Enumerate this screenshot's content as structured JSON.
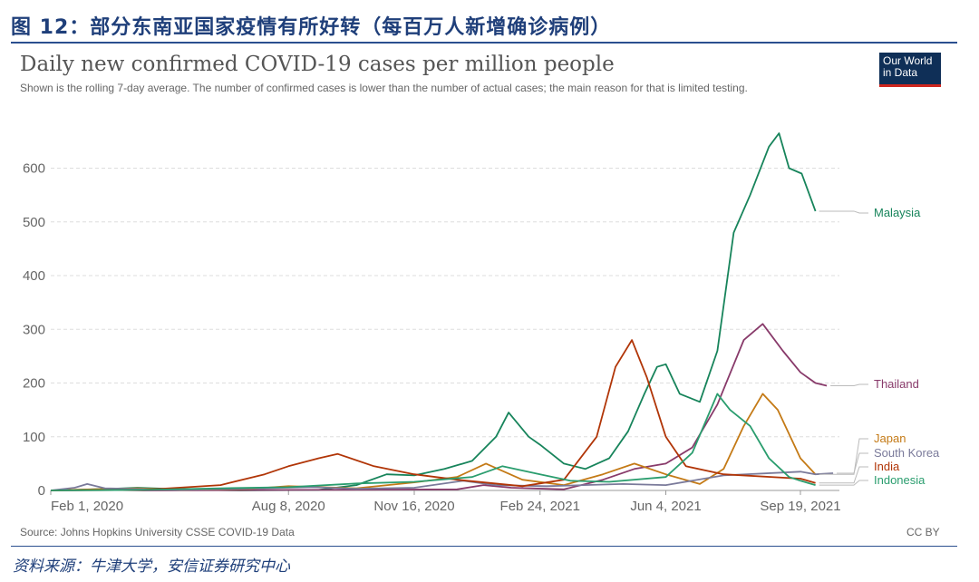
{
  "figure": {
    "title": "图 12：部分东南亚国家疫情有所好转（每百万人新增确诊病例）",
    "source": "资料来源：牛津大学，安信证券研究中心"
  },
  "owid": {
    "logo_line1": "Our World",
    "logo_line2": "in Data",
    "source": "Source: Johns Hopkins University CSSE COVID-19 Data",
    "license": "CC BY"
  },
  "colors": {
    "accent": "#1f3f7a",
    "grid": "#dddddd",
    "axis_text": "#666666"
  },
  "chart_data": {
    "type": "line",
    "title": "Daily new confirmed COVID-19 cases per million people",
    "subtitle": "Shown is the rolling 7-day average. The number of confirmed cases is lower than the number of actual cases; the main reason for that is limited testing.",
    "xlabel": "",
    "ylabel": "",
    "ylim": [
      0,
      660
    ],
    "yticks": [
      0,
      100,
      200,
      300,
      400,
      500,
      600
    ],
    "x_range": [
      "2020-02-01",
      "2021-10-20"
    ],
    "xticks": [
      {
        "date": "2020-02-01",
        "label": "Feb 1, 2020"
      },
      {
        "date": "2020-08-08",
        "label": "Aug 8, 2020"
      },
      {
        "date": "2020-11-16",
        "label": "Nov 16, 2020"
      },
      {
        "date": "2021-02-24",
        "label": "Feb 24, 2021"
      },
      {
        "date": "2021-06-04",
        "label": "Jun 4, 2021"
      },
      {
        "date": "2021-09-19",
        "label": "Sep 19, 2021"
      }
    ],
    "grid": true,
    "legend": "right-end labels",
    "series": [
      {
        "name": "Malaysia",
        "color": "#17845b",
        "points": [
          [
            "2020-02-01",
            0
          ],
          [
            "2020-03-20",
            3
          ],
          [
            "2020-04-10",
            5
          ],
          [
            "2020-05-15",
            2
          ],
          [
            "2020-07-01",
            0
          ],
          [
            "2020-09-01",
            1
          ],
          [
            "2020-10-01",
            10
          ],
          [
            "2020-10-25",
            30
          ],
          [
            "2020-11-16",
            28
          ],
          [
            "2020-12-10",
            40
          ],
          [
            "2021-01-01",
            55
          ],
          [
            "2021-01-20",
            100
          ],
          [
            "2021-01-30",
            145
          ],
          [
            "2021-02-15",
            100
          ],
          [
            "2021-02-24",
            85
          ],
          [
            "2021-03-15",
            50
          ],
          [
            "2021-04-01",
            40
          ],
          [
            "2021-04-20",
            60
          ],
          [
            "2021-05-05",
            110
          ],
          [
            "2021-05-18",
            180
          ],
          [
            "2021-05-28",
            230
          ],
          [
            "2021-06-04",
            235
          ],
          [
            "2021-06-15",
            180
          ],
          [
            "2021-07-01",
            165
          ],
          [
            "2021-07-15",
            260
          ],
          [
            "2021-07-28",
            480
          ],
          [
            "2021-08-10",
            550
          ],
          [
            "2021-08-25",
            640
          ],
          [
            "2021-09-02",
            665
          ],
          [
            "2021-09-10",
            600
          ],
          [
            "2021-09-20",
            590
          ],
          [
            "2021-10-01",
            520
          ]
        ]
      },
      {
        "name": "Thailand",
        "color": "#883a6a",
        "points": [
          [
            "2020-02-01",
            0
          ],
          [
            "2020-03-20",
            1
          ],
          [
            "2020-04-15",
            0
          ],
          [
            "2020-12-20",
            2
          ],
          [
            "2021-01-10",
            10
          ],
          [
            "2021-02-01",
            5
          ],
          [
            "2021-03-15",
            2
          ],
          [
            "2021-04-15",
            20
          ],
          [
            "2021-05-10",
            40
          ],
          [
            "2021-06-04",
            50
          ],
          [
            "2021-06-25",
            80
          ],
          [
            "2021-07-15",
            160
          ],
          [
            "2021-08-05",
            280
          ],
          [
            "2021-08-20",
            310
          ],
          [
            "2021-09-05",
            260
          ],
          [
            "2021-09-19",
            220
          ],
          [
            "2021-10-01",
            200
          ],
          [
            "2021-10-10",
            195
          ]
        ]
      },
      {
        "name": "Japan",
        "color": "#c47a16",
        "points": [
          [
            "2020-02-01",
            0
          ],
          [
            "2020-04-10",
            4
          ],
          [
            "2020-05-15",
            1
          ],
          [
            "2020-07-10",
            3
          ],
          [
            "2020-08-08",
            8
          ],
          [
            "2020-10-01",
            4
          ],
          [
            "2020-11-16",
            15
          ],
          [
            "2020-12-20",
            25
          ],
          [
            "2021-01-12",
            50
          ],
          [
            "2021-02-10",
            20
          ],
          [
            "2021-03-15",
            10
          ],
          [
            "2021-04-15",
            30
          ],
          [
            "2021-05-10",
            50
          ],
          [
            "2021-06-04",
            30
          ],
          [
            "2021-07-01",
            12
          ],
          [
            "2021-07-20",
            40
          ],
          [
            "2021-08-05",
            120
          ],
          [
            "2021-08-20",
            180
          ],
          [
            "2021-09-01",
            150
          ],
          [
            "2021-09-19",
            60
          ],
          [
            "2021-10-01",
            30
          ]
        ]
      },
      {
        "name": "South Korea",
        "color": "#7a7a9a",
        "points": [
          [
            "2020-02-01",
            0
          ],
          [
            "2020-02-20",
            5
          ],
          [
            "2020-03-01",
            12
          ],
          [
            "2020-03-15",
            4
          ],
          [
            "2020-05-15",
            1
          ],
          [
            "2020-08-28",
            6
          ],
          [
            "2020-10-01",
            3
          ],
          [
            "2020-11-16",
            5
          ],
          [
            "2020-12-25",
            18
          ],
          [
            "2021-01-20",
            10
          ],
          [
            "2021-03-01",
            8
          ],
          [
            "2021-05-01",
            12
          ],
          [
            "2021-06-04",
            10
          ],
          [
            "2021-07-20",
            28
          ],
          [
            "2021-09-19",
            35
          ],
          [
            "2021-10-01",
            30
          ],
          [
            "2021-10-15",
            32
          ]
        ]
      },
      {
        "name": "India",
        "color": "#b13507",
        "points": [
          [
            "2020-02-01",
            0
          ],
          [
            "2020-04-15",
            1
          ],
          [
            "2020-06-15",
            10
          ],
          [
            "2020-07-20",
            30
          ],
          [
            "2020-08-08",
            45
          ],
          [
            "2020-09-01",
            60
          ],
          [
            "2020-09-16",
            68
          ],
          [
            "2020-10-15",
            45
          ],
          [
            "2020-11-16",
            30
          ],
          [
            "2020-12-20",
            20
          ],
          [
            "2021-02-10",
            8
          ],
          [
            "2021-03-15",
            20
          ],
          [
            "2021-04-10",
            100
          ],
          [
            "2021-04-25",
            230
          ],
          [
            "2021-05-08",
            280
          ],
          [
            "2021-05-20",
            210
          ],
          [
            "2021-06-04",
            100
          ],
          [
            "2021-06-20",
            45
          ],
          [
            "2021-07-20",
            30
          ],
          [
            "2021-09-19",
            22
          ],
          [
            "2021-10-01",
            14
          ]
        ]
      },
      {
        "name": "Indonesia",
        "color": "#2a9d6e",
        "points": [
          [
            "2020-02-01",
            0
          ],
          [
            "2020-04-15",
            1
          ],
          [
            "2020-06-15",
            4
          ],
          [
            "2020-08-08",
            6
          ],
          [
            "2020-10-01",
            13
          ],
          [
            "2020-11-16",
            16
          ],
          [
            "2021-01-01",
            25
          ],
          [
            "2021-01-25",
            45
          ],
          [
            "2021-02-24",
            30
          ],
          [
            "2021-03-20",
            18
          ],
          [
            "2021-04-20",
            16
          ],
          [
            "2021-06-04",
            25
          ],
          [
            "2021-06-25",
            70
          ],
          [
            "2021-07-15",
            180
          ],
          [
            "2021-07-25",
            150
          ],
          [
            "2021-08-10",
            120
          ],
          [
            "2021-08-25",
            60
          ],
          [
            "2021-09-10",
            25
          ],
          [
            "2021-09-19",
            18
          ],
          [
            "2021-10-01",
            10
          ]
        ]
      }
    ]
  }
}
